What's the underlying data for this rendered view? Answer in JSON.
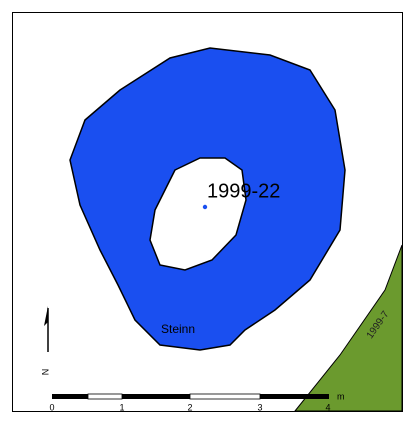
{
  "map": {
    "point_label": "1999-22",
    "area_label": "Steinn",
    "parcel_label": "1999-7",
    "north_label": "N",
    "scale_bar": {
      "labels": [
        "0",
        "1",
        "2",
        "3",
        "4"
      ],
      "unit": "m"
    }
  }
}
